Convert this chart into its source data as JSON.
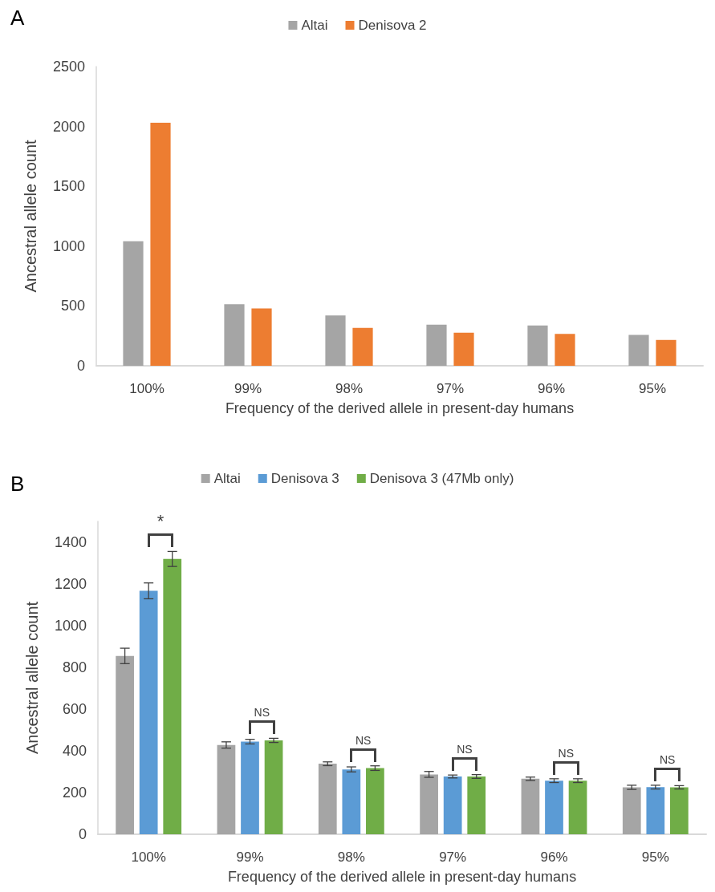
{
  "chart_data": [
    {
      "type": "bar",
      "title": "A",
      "xlabel": "Frequency of the derived allele in present-day humans",
      "ylabel": "Ancestral allele count",
      "categories": [
        "100%",
        "99%",
        "98%",
        "97%",
        "96%",
        "95%"
      ],
      "series": [
        {
          "name": "Altai",
          "color": "#a5a5a5",
          "values": [
            1040,
            514,
            420,
            343,
            336,
            258
          ]
        },
        {
          "name": "Denisova 2",
          "color": "#ed7d31",
          "values": [
            2030,
            480,
            316,
            276,
            267,
            216
          ]
        }
      ],
      "ylim": [
        0,
        2500
      ],
      "yticks": [
        0,
        500,
        1000,
        1500,
        2000,
        2500
      ],
      "legend": "top",
      "grid": false
    },
    {
      "type": "bar",
      "title": "B",
      "xlabel": "Frequency of the derived allele in present-day humans",
      "ylabel": "Ancestral allele count",
      "categories": [
        "100%",
        "99%",
        "98%",
        "97%",
        "96%",
        "95%"
      ],
      "series": [
        {
          "name": "Altai",
          "color": "#a5a5a5",
          "values": [
            855,
            428,
            338,
            287,
            266,
            225
          ],
          "errors": [
            37,
            15,
            9,
            14,
            8,
            10
          ]
        },
        {
          "name": "Denisova 3",
          "color": "#5b9bd5",
          "values": [
            1167,
            444,
            311,
            277,
            257,
            226
          ],
          "errors": [
            38,
            11,
            12,
            7,
            9,
            9
          ]
        },
        {
          "name": "Denisova 3 (47Mb only)",
          "color": "#70ad47",
          "values": [
            1320,
            450,
            317,
            277,
            257,
            225
          ],
          "errors": [
            36,
            10,
            11,
            9,
            9,
            8
          ]
        }
      ],
      "annotations": [
        "*",
        "NS",
        "NS",
        "NS",
        "NS",
        "NS"
      ],
      "ylim": [
        0,
        1500
      ],
      "yticks": [
        0,
        200,
        400,
        600,
        800,
        1000,
        1200,
        1400
      ],
      "legend": "top",
      "grid": false
    }
  ]
}
